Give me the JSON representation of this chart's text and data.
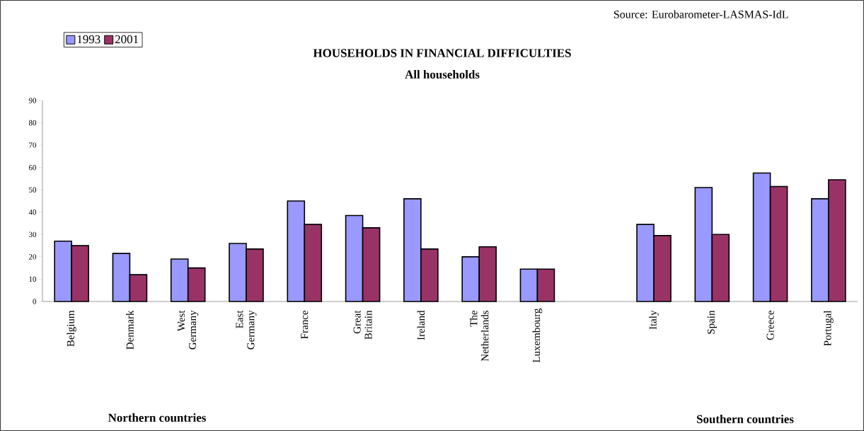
{
  "chart_data": {
    "type": "bar",
    "title": "HOUSEHOLDS IN FINANCIAL DIFFICULTIES",
    "subtitle": "All households",
    "categories": [
      "Belgium",
      "Denmark",
      "West Germany",
      "East Germany",
      "France",
      "Great Britain",
      "Ireland",
      "The Netherlands",
      "Luxembourg",
      null,
      "Italy",
      "Spain",
      "Greece",
      "Portugal"
    ],
    "series": [
      {
        "name": "1993",
        "color": "#9999ff",
        "values": [
          27,
          21.5,
          19,
          26,
          45,
          38.5,
          46,
          20,
          14.5,
          null,
          34.5,
          51,
          57.5,
          46
        ]
      },
      {
        "name": "2001",
        "color": "#993366",
        "values": [
          25,
          12,
          15,
          23.5,
          34.5,
          33,
          23.5,
          24.5,
          14.5,
          null,
          29.5,
          30,
          51.5,
          54.5
        ]
      }
    ],
    "ylim": [
      0,
      90
    ],
    "yticks": [
      0,
      10,
      20,
      30,
      40,
      50,
      60,
      70,
      80,
      90
    ],
    "legend": "top left",
    "annotations": [
      "Source: Eurobarometer-LASMAS-IdL",
      "Northern countries",
      "Southern countries"
    ]
  }
}
